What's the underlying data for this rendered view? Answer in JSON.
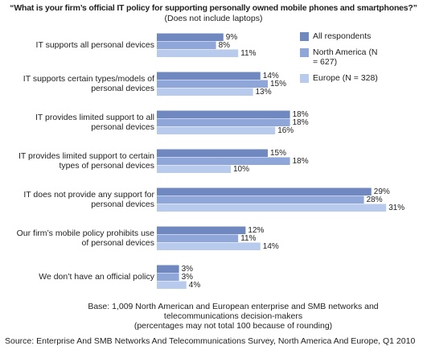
{
  "chart_data": {
    "type": "bar",
    "orientation": "horizontal",
    "title": "“What is your firm’s official IT policy for supporting personally owned mobile phones and smartphones?”",
    "subtitle": "(Does not include laptops)",
    "categories": [
      "IT supports all personal devices",
      "IT supports certain types/models of personal devices",
      "IT provides limited support to all personal devices",
      "IT provides limited support to certain types of personal devices",
      "IT does not provide any support for personal devices",
      "Our firm’s mobile policy prohibits use of personal devices",
      "We don’t have an official policy"
    ],
    "series": [
      {
        "name": "All respondents",
        "color": "#6f88c0",
        "values": [
          9,
          14,
          18,
          15,
          29,
          12,
          3
        ],
        "value_labels": [
          "9%",
          "14%",
          "18%",
          "15%",
          "29%",
          "12%",
          "3%"
        ]
      },
      {
        "name": "North America (N = 627)",
        "color": "#8fa7d8",
        "values": [
          8,
          15,
          18,
          18,
          28,
          11,
          3
        ],
        "value_labels": [
          "8%",
          "15%",
          "18%",
          "18%",
          "28%",
          "11%",
          "3%"
        ]
      },
      {
        "name": "Europe (N = 328)",
        "color": "#b8cbec",
        "values": [
          11,
          13,
          16,
          10,
          31,
          14,
          4
        ],
        "value_labels": [
          "11%",
          "13%",
          "16%",
          "10%",
          "31%",
          "14%",
          "4%"
        ]
      }
    ],
    "base_note": "Base: 1,009 North American and European enterprise and SMB networks and telecommunications decision-makers",
    "rounding_note": "(percentages may not total 100 because of rounding)",
    "source": "Source: Enterprise And SMB Networks And Telecommunications Survey, North America And Europe, Q1 2010"
  }
}
